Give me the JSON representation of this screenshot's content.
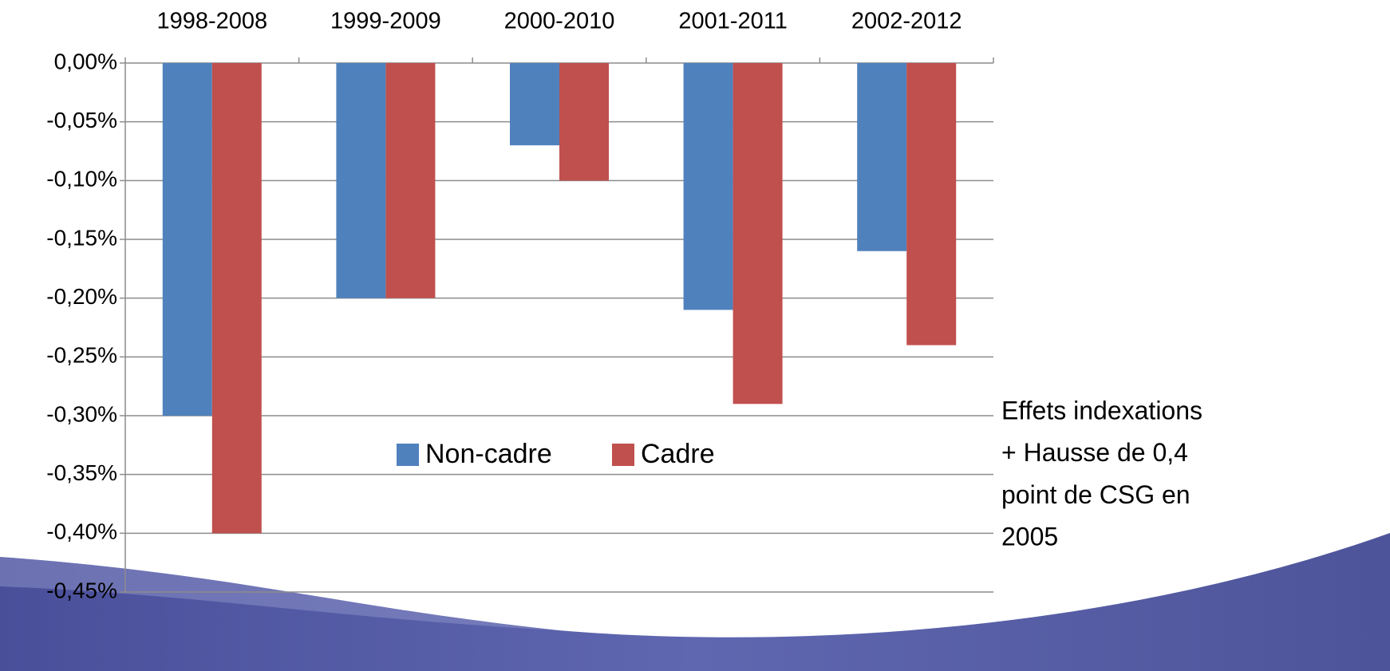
{
  "chart_data": {
    "type": "bar",
    "categories": [
      "1998-2008",
      "1999-2009",
      "2000-2010",
      "2001-2011",
      "2002-2012"
    ],
    "series": [
      {
        "name": "Non-cadre",
        "color": "#4f81bd",
        "values": [
          -0.3,
          -0.2,
          -0.07,
          -0.21,
          -0.16
        ]
      },
      {
        "name": "Cadre",
        "color": "#c0504d",
        "values": [
          -0.4,
          -0.2,
          -0.1,
          -0.29,
          -0.24
        ]
      }
    ],
    "ylim": [
      -0.45,
      0
    ],
    "yticks": [
      {
        "value": 0,
        "label": "0,00%"
      },
      {
        "value": -0.05,
        "label": "-0,05%"
      },
      {
        "value": -0.1,
        "label": "-0,10%"
      },
      {
        "value": -0.15,
        "label": "-0,15%"
      },
      {
        "value": -0.2,
        "label": "-0,20%"
      },
      {
        "value": -0.25,
        "label": "-0,25%"
      },
      {
        "value": -0.3,
        "label": "-0,30%"
      },
      {
        "value": -0.35,
        "label": "-0,35%"
      },
      {
        "value": -0.4,
        "label": "-0,40%"
      },
      {
        "value": -0.45,
        "label": "-0,45%"
      }
    ],
    "grid": true,
    "legend": "center",
    "annotation": [
      "Effets indexations",
      "+ Hausse de 0,4",
      "point de CSG en",
      "2005"
    ]
  }
}
